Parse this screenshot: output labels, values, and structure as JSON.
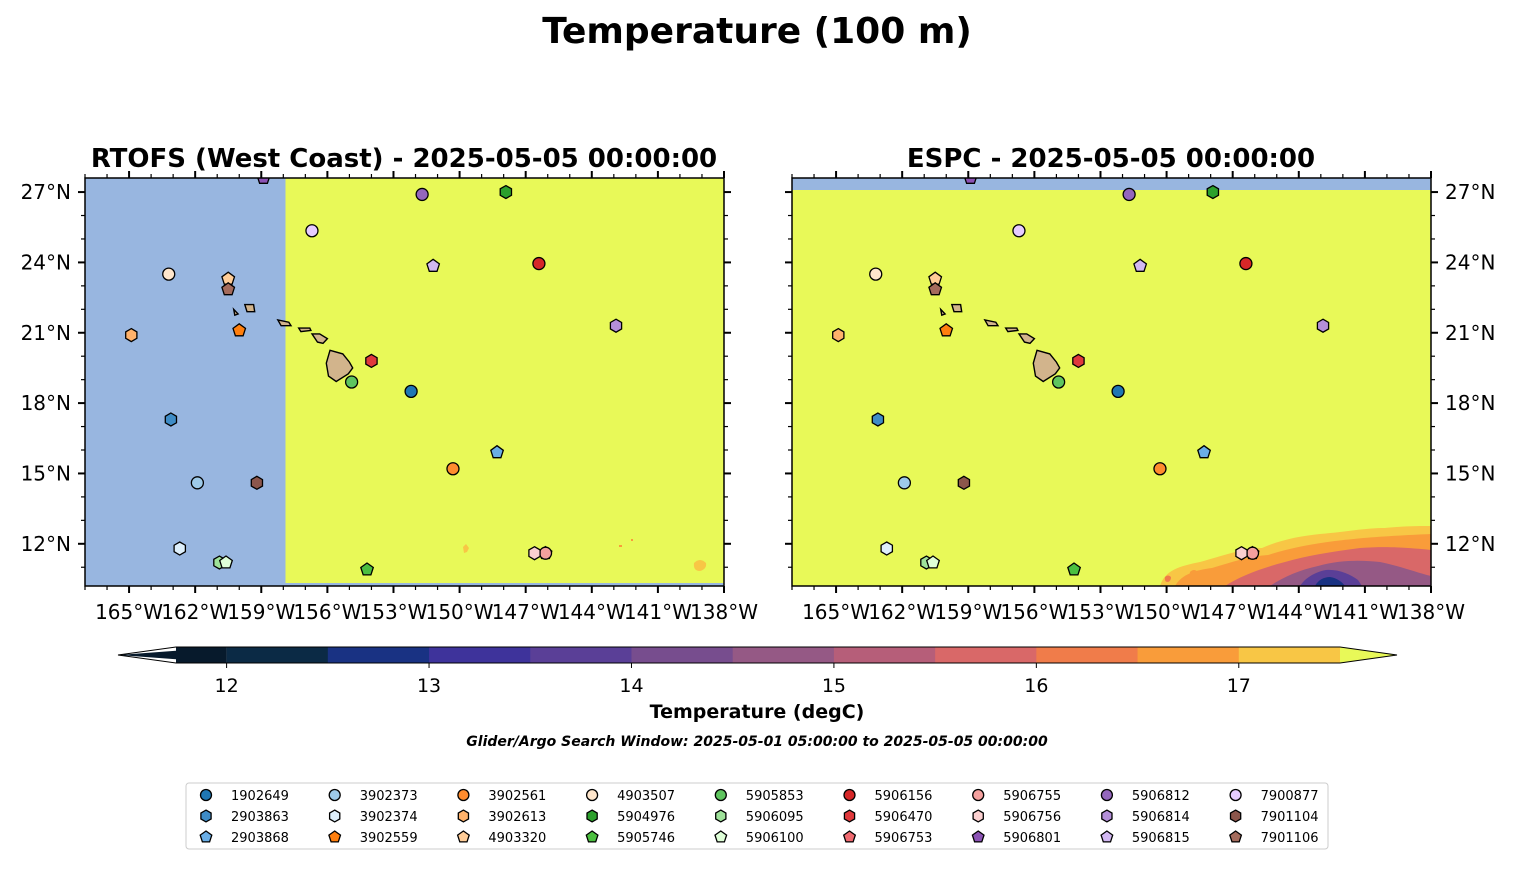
{
  "figure": {
    "title": "Temperature (100 m)",
    "search_window": "Glider/Argo Search Window: 2025-05-01 05:00:00 to 2025-05-05 00:00:00"
  },
  "chart_data": [
    {
      "type": "map",
      "title": "RTOFS (West Coast) - 2025-05-05 00:00:00",
      "xlim": [
        -167,
        -138
      ],
      "ylim": [
        10.2,
        27.6
      ],
      "xticks": [
        -165,
        -162,
        -159,
        -156,
        -153,
        -150,
        -147,
        -144,
        -141,
        -138
      ],
      "xtick_labels": [
        "165°W",
        "162°W",
        "159°W",
        "156°W",
        "153°W",
        "150°W",
        "147°W",
        "144°W",
        "141°W",
        "138°W"
      ],
      "yticks": [
        12,
        15,
        18,
        21,
        24,
        27
      ],
      "ytick_labels": [
        "12°N",
        "15°N",
        "18°N",
        "21°N",
        "24°N",
        "27°N"
      ],
      "ytick_side": "left",
      "no_data_region": {
        "lon_max": -157.9,
        "color": "#98b6e0"
      },
      "field_color": "#e8f958"
    },
    {
      "type": "map",
      "title": "ESPC - 2025-05-05 00:00:00",
      "xlim": [
        -167,
        -138
      ],
      "ylim": [
        10.2,
        27.6
      ],
      "xticks": [
        -165,
        -162,
        -159,
        -156,
        -153,
        -150,
        -147,
        -144,
        -141,
        -138
      ],
      "xtick_labels": [
        "165°W",
        "162°W",
        "159°W",
        "156°W",
        "153°W",
        "150°W",
        "147°W",
        "144°W",
        "141°W",
        "138°W"
      ],
      "yticks": [
        12,
        15,
        18,
        21,
        24,
        27
      ],
      "ytick_labels": [
        "12°N",
        "15°N",
        "18°N",
        "21°N",
        "24°N",
        "27°N"
      ],
      "ytick_side": "right",
      "no_data_region": {
        "lat_min": 27.1,
        "color": "#98b6e0"
      },
      "field_color": "#e8f958"
    }
  ],
  "colorbar": {
    "label": "Temperature (degC)",
    "vmin": 11.75,
    "vmax": 17.5,
    "ticks": [
      12,
      13,
      14,
      15,
      16,
      17
    ],
    "tick_labels": [
      "12",
      "13",
      "14",
      "15",
      "16",
      "17"
    ],
    "bins": [
      {
        "from": 12.0,
        "to": 12.5,
        "color": "#0b2a45"
      },
      {
        "from": 12.5,
        "to": 13.0,
        "color": "#193283"
      },
      {
        "from": 13.0,
        "to": 13.5,
        "color": "#3e339b"
      },
      {
        "from": 13.5,
        "to": 14.0,
        "color": "#5a3f97"
      },
      {
        "from": 14.0,
        "to": 14.5,
        "color": "#774d8e"
      },
      {
        "from": 14.5,
        "to": 15.0,
        "color": "#955985"
      },
      {
        "from": 15.0,
        "to": 15.5,
        "color": "#b65e79"
      },
      {
        "from": 15.5,
        "to": 16.0,
        "color": "#d96868"
      },
      {
        "from": 16.0,
        "to": 16.5,
        "color": "#f07c4a"
      },
      {
        "from": 16.5,
        "to": 17.0,
        "color": "#f99c3a"
      },
      {
        "from": 17.0,
        "to": 17.5,
        "color": "#f8c645"
      }
    ],
    "under_color": "#071a2c",
    "over_color": "#e8f958"
  },
  "platforms": [
    {
      "id": "1902649",
      "marker": "circle",
      "color": "#1f77b4",
      "lon": -152.2,
      "lat": 18.5
    },
    {
      "id": "2903863",
      "marker": "hexagon",
      "color": "#3f8cc6",
      "lon": -163.1,
      "lat": 17.3
    },
    {
      "id": "2903868",
      "marker": "pentagon",
      "color": "#6aaee6",
      "lon": -148.3,
      "lat": 15.9
    },
    {
      "id": "3902373",
      "marker": "circle",
      "color": "#9ecae9",
      "lon": -161.9,
      "lat": 14.6
    },
    {
      "id": "3902374",
      "marker": "hexagon",
      "color": "#deeffb",
      "lon": -162.7,
      "lat": 11.8
    },
    {
      "id": "3902559",
      "marker": "pentagon",
      "color": "#ff7f0e",
      "lon": -160.0,
      "lat": 21.1
    },
    {
      "id": "3902561",
      "marker": "circle",
      "color": "#ff8c2e",
      "lon": -150.3,
      "lat": 15.2
    },
    {
      "id": "3902613",
      "marker": "hexagon",
      "color": "#ffb26b",
      "lon": -164.9,
      "lat": 20.9
    },
    {
      "id": "4903320",
      "marker": "pentagon",
      "color": "#ffcd98",
      "lon": -160.5,
      "lat": 23.3
    },
    {
      "id": "4903507",
      "marker": "circle",
      "color": "#ffe6cc",
      "lon": -163.2,
      "lat": 23.5
    },
    {
      "id": "5904976",
      "marker": "hexagon",
      "color": "#2ca02c",
      "lon": -147.9,
      "lat": 27.0
    },
    {
      "id": "5905746",
      "marker": "pentagon",
      "color": "#4cbf40",
      "lon": -154.2,
      "lat": 10.9
    },
    {
      "id": "5905853",
      "marker": "circle",
      "color": "#5fc55f",
      "lon": -154.9,
      "lat": 18.9
    },
    {
      "id": "5906095",
      "marker": "hexagon",
      "color": "#9fe29a",
      "lon": -160.9,
      "lat": 11.2
    },
    {
      "id": "5906100",
      "marker": "pentagon",
      "color": "#dfffd8",
      "lon": -160.6,
      "lat": 11.2
    },
    {
      "id": "5906156",
      "marker": "circle",
      "color": "#d62728",
      "lon": -146.4,
      "lat": 23.95
    },
    {
      "id": "5906470",
      "marker": "hexagon",
      "color": "#e0393c",
      "lon": -154.0,
      "lat": 19.8
    },
    {
      "id": "5906753",
      "marker": "pentagon",
      "color": "#f06a70",
      "lon": -146.1,
      "lat": 11.6
    },
    {
      "id": "5906755",
      "marker": "circle",
      "color": "#f4a09e",
      "lon": -146.1,
      "lat": 11.6
    },
    {
      "id": "5906756",
      "marker": "hexagon",
      "color": "#fbd0d0",
      "lon": -146.6,
      "lat": 11.6
    },
    {
      "id": "5906801",
      "marker": "pentagon",
      "color": "#8c53b5",
      "lon": -158.9,
      "lat": 27.6
    },
    {
      "id": "5906812",
      "marker": "circle",
      "color": "#9467bd",
      "lon": -151.7,
      "lat": 26.9
    },
    {
      "id": "5906814",
      "marker": "hexagon",
      "color": "#b48fd9",
      "lon": -142.9,
      "lat": 21.3
    },
    {
      "id": "5906815",
      "marker": "pentagon",
      "color": "#d2b8f2",
      "lon": -151.2,
      "lat": 23.85
    },
    {
      "id": "7900877",
      "marker": "circle",
      "color": "#e6ccff",
      "lon": -156.7,
      "lat": 25.35
    },
    {
      "id": "7901104",
      "marker": "hexagon",
      "color": "#8c564b",
      "lon": -159.2,
      "lat": 14.6
    },
    {
      "id": "7901106",
      "marker": "pentagon",
      "color": "#a46b5c",
      "lon": -160.5,
      "lat": 22.85
    }
  ]
}
